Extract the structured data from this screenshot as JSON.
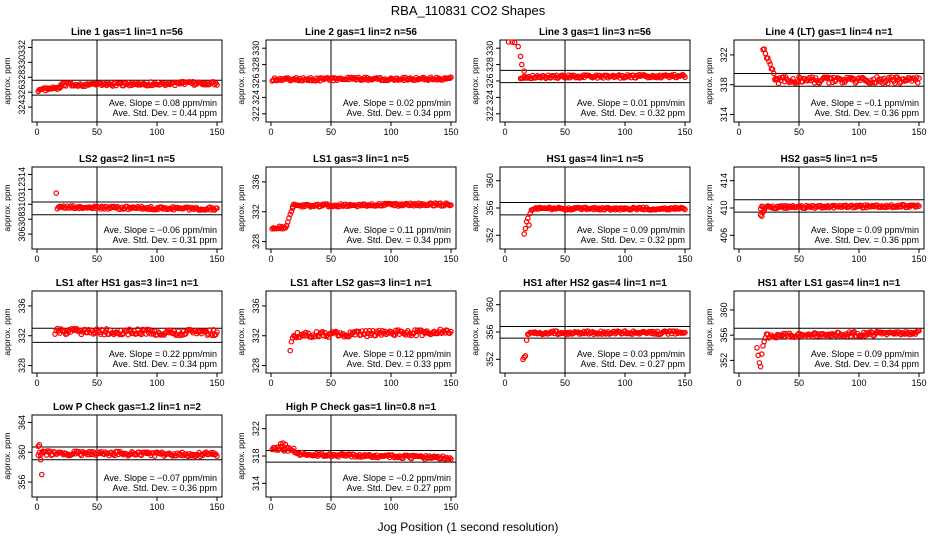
{
  "figure": {
    "title": "RBA_110831  CO2 Shapes",
    "xlabel": "Jog Position (1 second resolution)"
  },
  "colors": {
    "points": "#ff0000",
    "axes": "#000000",
    "background": "#ffffff"
  },
  "chart_data": [
    {
      "type": "scatter",
      "title": "Line 1 gas=1 lin=1 n=56",
      "ylabel": "approx. ppm",
      "xlim": [
        0,
        150
      ],
      "ylim": [
        322,
        333
      ],
      "xticks": [
        0,
        50,
        100,
        150
      ],
      "yticks": [
        324,
        326,
        328,
        330,
        332
      ],
      "hlines": [
        327.6,
        325.6
      ],
      "vline": 50,
      "annotations": [
        "Ave. Slope = 0.08  ppm/min",
        "Ave. Std. Dev. = 0.44  ppm"
      ],
      "segments": [
        {
          "x0": 1,
          "x1": 20,
          "y0": 326.3,
          "y1": 326.6,
          "noise": 0.2
        },
        {
          "x0": 20,
          "x1": 150,
          "y0": 327.0,
          "y1": 327.2,
          "noise": 0.25
        }
      ],
      "outliers": []
    },
    {
      "type": "scatter",
      "title": "Line 2 gas=1 lin=2 n=56",
      "ylabel": "approx. ppm",
      "xlim": [
        0,
        150
      ],
      "ylim": [
        321,
        331
      ],
      "xticks": [
        0,
        50,
        100,
        150
      ],
      "yticks": [
        322,
        324,
        326,
        328,
        330
      ],
      "hlines": [],
      "vline": 50,
      "annotations": [
        "Ave. Slope = 0.02  ppm/min",
        "Ave. Std. Dev. = 0.34  ppm"
      ],
      "segments": [
        {
          "x0": 1,
          "x1": 150,
          "y0": 326.2,
          "y1": 326.3,
          "noise": 0.2
        }
      ],
      "outliers": []
    },
    {
      "type": "scatter",
      "title": "Line 3 gas=1 lin=3 n=56",
      "ylabel": "approx. ppm",
      "xlim": [
        0,
        150
      ],
      "ylim": [
        321,
        331
      ],
      "xticks": [
        0,
        50,
        100,
        150
      ],
      "yticks": [
        322,
        324,
        326,
        328,
        330
      ],
      "hlines": [
        327.3,
        325.8
      ],
      "vline": 50,
      "annotations": [
        "Ave. Slope = 0.01  ppm/min",
        "Ave. Std. Dev. = 0.32  ppm"
      ],
      "segments": [
        {
          "x0": 13,
          "x1": 150,
          "y0": 326.5,
          "y1": 326.6,
          "noise": 0.2
        }
      ],
      "outliers": [
        [
          3,
          330.8
        ],
        [
          6,
          330.9
        ],
        [
          8,
          330.7
        ],
        [
          11,
          330.2
        ],
        [
          13,
          329.0
        ],
        [
          14,
          328.0
        ],
        [
          16,
          327.2
        ]
      ]
    },
    {
      "type": "scatter",
      "title": "Line 4 (LT) gas=1 lin=4 n=1",
      "ylabel": "approx. ppm",
      "xlim": [
        0,
        150
      ],
      "ylim": [
        313,
        324
      ],
      "xticks": [
        0,
        50,
        100,
        150
      ],
      "yticks": [
        314,
        318,
        322
      ],
      "hlines": [
        319.5,
        317.8
      ],
      "vline": 50,
      "annotations": [
        "Ave. Slope = −0.1  ppm/min",
        "Ave. Std. Dev. = 0.36  ppm"
      ],
      "segments": [
        {
          "x0": 20,
          "x1": 30,
          "y0": 323.0,
          "y1": 319.0,
          "noise": 0.3
        },
        {
          "x0": 30,
          "x1": 150,
          "y0": 318.6,
          "y1": 318.6,
          "noise": 0.45
        }
      ],
      "outliers": []
    },
    {
      "type": "scatter",
      "title": "LS2 gas=2 lin=1 n=5",
      "ylabel": "approx. ppm",
      "xlim": [
        0,
        150
      ],
      "ylim": [
        304,
        315
      ],
      "xticks": [
        0,
        50,
        100,
        150
      ],
      "yticks": [
        306,
        308,
        310,
        312,
        314
      ],
      "hlines": [
        310.3,
        308.6
      ],
      "vline": 50,
      "annotations": [
        "Ave. Slope = −0.06  ppm/min",
        "Ave. Std. Dev. = 0.31  ppm"
      ],
      "segments": [
        {
          "x0": 17,
          "x1": 150,
          "y0": 309.6,
          "y1": 309.4,
          "noise": 0.2
        }
      ],
      "outliers": [
        [
          16,
          311.5
        ]
      ]
    },
    {
      "type": "scatter",
      "title": "LS1 gas=3 lin=1 n=5",
      "ylabel": "approx. ppm",
      "xlim": [
        0,
        150
      ],
      "ylim": [
        327,
        338
      ],
      "xticks": [
        0,
        50,
        100,
        150
      ],
      "yticks": [
        328,
        332,
        336
      ],
      "hlines": [],
      "vline": 50,
      "annotations": [
        "Ave. Slope = 0.11  ppm/min",
        "Ave. Std. Dev. = 0.34  ppm"
      ],
      "segments": [
        {
          "x0": 1,
          "x1": 13,
          "y0": 329.9,
          "y1": 329.9,
          "noise": 0.2
        },
        {
          "x0": 13,
          "x1": 18,
          "y0": 330.2,
          "y1": 332.5,
          "noise": 0.2
        },
        {
          "x0": 18,
          "x1": 150,
          "y0": 332.8,
          "y1": 333.0,
          "noise": 0.2
        }
      ],
      "outliers": []
    },
    {
      "type": "scatter",
      "title": "HS1 gas=4 lin=1 n=5",
      "ylabel": "approx. ppm",
      "xlim": [
        0,
        150
      ],
      "ylim": [
        350,
        362
      ],
      "xticks": [
        0,
        50,
        100,
        150
      ],
      "yticks": [
        352,
        356,
        360
      ],
      "hlines": [
        356.8,
        355.0
      ],
      "vline": 50,
      "annotations": [
        "Ave. Slope = 0.09  ppm/min",
        "Ave. Std. Dev. = 0.32  ppm"
      ],
      "segments": [
        {
          "x0": 22,
          "x1": 150,
          "y0": 355.9,
          "y1": 355.9,
          "noise": 0.2
        }
      ],
      "outliers": [
        [
          16,
          352.2
        ],
        [
          17,
          353.0
        ],
        [
          18,
          354.0
        ],
        [
          19,
          354.5
        ],
        [
          20,
          353.5
        ],
        [
          21,
          355.2
        ]
      ]
    },
    {
      "type": "scatter",
      "title": "HS2 gas=5 lin=1 n=5",
      "ylabel": "approx. ppm",
      "xlim": [
        0,
        150
      ],
      "ylim": [
        404,
        416
      ],
      "xticks": [
        0,
        50,
        100,
        150
      ],
      "yticks": [
        406,
        410,
        414
      ],
      "hlines": [
        411.2,
        409.4
      ],
      "vline": 50,
      "annotations": [
        "Ave. Slope = 0.09  ppm/min",
        "Ave. Std. Dev. = 0.36  ppm"
      ],
      "segments": [
        {
          "x0": 18,
          "x1": 150,
          "y0": 410.1,
          "y1": 410.3,
          "noise": 0.2
        }
      ],
      "outliers": [
        [
          18,
          409.0
        ],
        [
          19,
          408.8
        ],
        [
          20,
          409.4
        ],
        [
          21,
          409.6
        ]
      ]
    },
    {
      "type": "scatter",
      "title": "LS1 after HS1 gas=3 lin=1 n=1",
      "ylabel": "approx. ppm",
      "xlim": [
        0,
        150
      ],
      "ylim": [
        327,
        338
      ],
      "xticks": [
        0,
        50,
        100,
        150
      ],
      "yticks": [
        328,
        332,
        336
      ],
      "hlines": [
        333.0,
        331.1
      ],
      "vline": 50,
      "annotations": [
        "Ave. Slope = 0.22  ppm/min",
        "Ave. Std. Dev. = 0.34  ppm"
      ],
      "segments": [
        {
          "x0": 15,
          "x1": 150,
          "y0": 332.6,
          "y1": 332.4,
          "noise": 0.4
        }
      ],
      "outliers": []
    },
    {
      "type": "scatter",
      "title": "LS1 after LS2 gas=3 lin=1 n=1",
      "ylabel": "approx. ppm",
      "xlim": [
        0,
        150
      ],
      "ylim": [
        327,
        338
      ],
      "xticks": [
        0,
        50,
        100,
        150
      ],
      "yticks": [
        328,
        332,
        336
      ],
      "hlines": [],
      "vline": 50,
      "annotations": [
        "Ave. Slope = 0.12  ppm/min",
        "Ave. Std. Dev. = 0.33  ppm"
      ],
      "segments": [
        {
          "x0": 18,
          "x1": 150,
          "y0": 332.1,
          "y1": 332.5,
          "noise": 0.4
        }
      ],
      "outliers": [
        [
          16,
          330.0
        ],
        [
          17,
          331.2
        ]
      ]
    },
    {
      "type": "scatter",
      "title": "HS1 after HS2 gas=4 lin=1 n=1",
      "ylabel": "approx. ppm",
      "xlim": [
        0,
        150
      ],
      "ylim": [
        350,
        362
      ],
      "xticks": [
        0,
        50,
        100,
        150
      ],
      "yticks": [
        352,
        356,
        360
      ],
      "hlines": [
        356.8,
        355.1
      ],
      "vline": 50,
      "annotations": [
        "Ave. Slope = 0.03  ppm/min",
        "Ave. Std. Dev. = 0.27  ppm"
      ],
      "segments": [
        {
          "x0": 19,
          "x1": 150,
          "y0": 355.9,
          "y1": 355.9,
          "noise": 0.25
        }
      ],
      "outliers": [
        [
          15,
          352.0
        ],
        [
          16,
          352.3
        ],
        [
          17,
          352.5
        ],
        [
          18,
          354.8
        ]
      ]
    },
    {
      "type": "scatter",
      "title": "HS1 after LS1 gas=4 lin=1 n=1",
      "ylabel": "approx. ppm",
      "xlim": [
        0,
        150
      ],
      "ylim": [
        350,
        363
      ],
      "xticks": [
        0,
        50,
        100,
        150
      ],
      "yticks": [
        352,
        356,
        360
      ],
      "hlines": [
        357.1,
        355.4
      ],
      "vline": 50,
      "annotations": [
        "Ave. Slope = 0.09  ppm/min",
        "Ave. Std. Dev. = 0.34  ppm"
      ],
      "segments": [
        {
          "x0": 22,
          "x1": 150,
          "y0": 355.9,
          "y1": 356.4,
          "noise": 0.35
        }
      ],
      "outliers": [
        [
          15,
          354.0
        ],
        [
          16,
          352.8
        ],
        [
          17,
          351.6
        ],
        [
          18,
          351.0
        ],
        [
          19,
          353.0
        ],
        [
          20,
          354.3
        ],
        [
          21,
          355.0
        ]
      ]
    },
    {
      "type": "scatter",
      "title": "Low P Check gas=1.2 lin=1 n=2",
      "ylabel": "approx. ppm",
      "xlim": [
        0,
        150
      ],
      "ylim": [
        354,
        365
      ],
      "xticks": [
        0,
        50,
        100,
        150
      ],
      "yticks": [
        356,
        360,
        364
      ],
      "hlines": [
        360.7,
        359.0
      ],
      "vline": 50,
      "annotations": [
        "Ave. Slope = −0.07  ppm/min",
        "Ave. Std. Dev. = 0.36  ppm"
      ],
      "segments": [
        {
          "x0": 1,
          "x1": 150,
          "y0": 359.9,
          "y1": 359.7,
          "noise": 0.3
        }
      ],
      "outliers": [
        [
          1,
          360.8
        ],
        [
          2,
          361.0
        ],
        [
          3,
          359.0
        ],
        [
          4,
          357.0
        ]
      ]
    },
    {
      "type": "scatter",
      "title": "High P Check gas=1 lin=0.8 n=1",
      "ylabel": "approx. ppm",
      "xlim": [
        0,
        150
      ],
      "ylim": [
        312,
        324
      ],
      "xticks": [
        0,
        50,
        100,
        150
      ],
      "yticks": [
        314,
        318,
        322
      ],
      "hlines": [
        318.8,
        317.1
      ],
      "vline": 50,
      "annotations": [
        "Ave. Slope = −0.2  ppm/min",
        "Ave. Std. Dev. = 0.27  ppm"
      ],
      "segments": [
        {
          "x0": 1,
          "x1": 20,
          "y0": 319.3,
          "y1": 318.8,
          "noise": 0.35
        },
        {
          "x0": 20,
          "x1": 150,
          "y0": 318.3,
          "y1": 317.7,
          "noise": 0.25
        }
      ],
      "outliers": [
        [
          8,
          319.8
        ],
        [
          10,
          319.9
        ],
        [
          12,
          319.7
        ]
      ]
    }
  ]
}
